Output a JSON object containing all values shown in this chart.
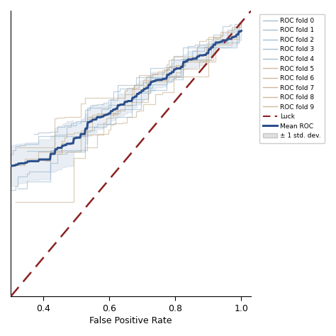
{
  "xlabel": "False Positive Rate",
  "xlim": [
    0.3,
    1.03
  ],
  "ylim": [
    0.3,
    1.03
  ],
  "fold_color_blue": "#8fafc8",
  "fold_color_brown": "#c4a882",
  "mean_color": "#2b4f8c",
  "luck_color": "#8b2020",
  "shade_color": "#b8c8dc",
  "n_folds": 10,
  "legend_fold_labels": [
    "ROC fold 0",
    "ROC fold 1",
    "ROC fold 2",
    "ROC fold 3",
    "ROC fold 4",
    "ROC fold 5",
    "ROC fold 6",
    "ROC fold 7",
    "ROC fold 8",
    "ROC fold 9"
  ],
  "legend_luck_label": "Luck",
  "legend_mean_label": "Mean ROC",
  "legend_shade_label": "± 1 std. dev.",
  "figsize": [
    4.74,
    4.74
  ],
  "dpi": 100
}
